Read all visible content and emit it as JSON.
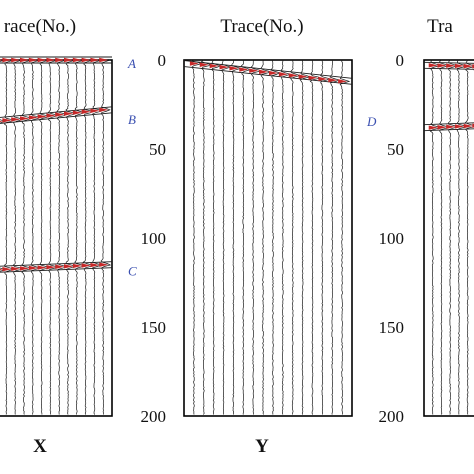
{
  "chart_data": [
    {
      "type": "seismic-gather",
      "panel_label": "X",
      "title": "race(No.)",
      "ylim": [
        0,
        200
      ],
      "yticks": [],
      "events": [
        {
          "label": "A",
          "t_start": 0,
          "t_end": 0
        },
        {
          "label": "B",
          "t_start": 35,
          "t_end": 28
        },
        {
          "label": "C",
          "t_start": 118,
          "t_end": 115
        }
      ]
    },
    {
      "type": "seismic-gather",
      "panel_label": "Y",
      "title": "Trace(No.)",
      "ylim": [
        0,
        200
      ],
      "yticks": [
        0,
        50,
        100,
        150,
        200
      ],
      "events": [
        {
          "label": "D",
          "t_start": 2,
          "t_end": 12
        }
      ]
    },
    {
      "type": "seismic-gather",
      "panel_label": "",
      "title": "Tra",
      "ylim": [
        0,
        200
      ],
      "yticks": [
        0,
        50,
        100,
        150,
        200
      ],
      "events": [
        {
          "label": "",
          "t_start": 3,
          "t_end": 4
        },
        {
          "label": "",
          "t_start": 38,
          "t_end": 36
        }
      ]
    }
  ],
  "colors": {
    "event": "#c62828",
    "trace": "#1a1a1a",
    "frame": "#000000"
  }
}
